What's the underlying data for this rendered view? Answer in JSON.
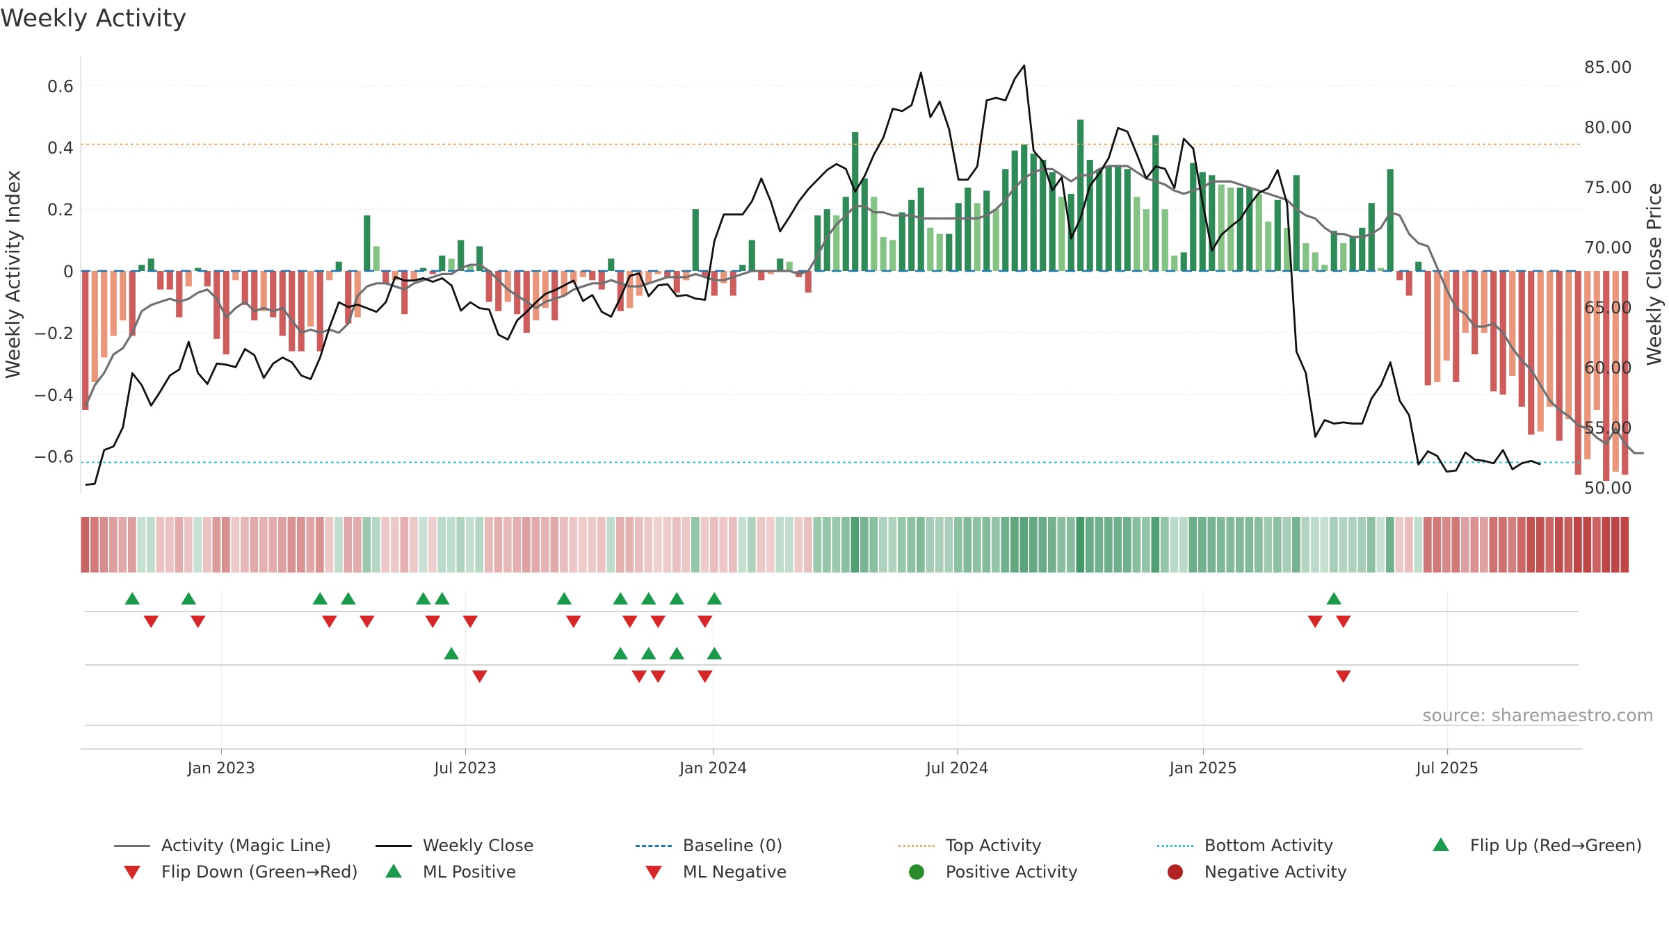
{
  "chart_data": {
    "type": "bar",
    "title": "Weekly Activity",
    "ylabel_left": "Weekly Activity Index",
    "ylabel_right": "Weekly Close Price",
    "source": "source: sharemaestro.com",
    "y_left_range": [
      -0.72,
      0.72
    ],
    "y_left_ticks": [
      0.6,
      0.4,
      0.2,
      0,
      -0.2,
      -0.4,
      -0.6
    ],
    "y_left_tick_labels": [
      "0.6",
      "0.4",
      "0.2",
      "0",
      "−0.2",
      "−0.4",
      "−0.6"
    ],
    "y_right_range": [
      49.5,
      86.5
    ],
    "y_right_ticks": [
      85,
      80,
      75,
      70,
      65,
      60,
      55,
      50
    ],
    "y_right_tick_labels": [
      "85.00",
      "80.00",
      "75.00",
      "70.00",
      "65.00",
      "60.00",
      "55.00",
      "50.00"
    ],
    "x_ticks": [
      {
        "label": "Jan 2023",
        "week": 15
      },
      {
        "label": "Jul 2023",
        "week": 41
      },
      {
        "label": "Jan 2024",
        "week": 67.4
      },
      {
        "label": "Jul 2024",
        "week": 93.4
      },
      {
        "label": "Jan 2025",
        "week": 119.6
      },
      {
        "label": "Jul 2025",
        "week": 145.6
      }
    ],
    "top_activity": 0.41,
    "bottom_activity": -0.62,
    "baseline": 0,
    "activity": [
      -0.45,
      -0.36,
      -0.28,
      -0.21,
      -0.16,
      -0.21,
      0.02,
      0.04,
      -0.06,
      -0.06,
      -0.15,
      -0.05,
      0.01,
      -0.05,
      -0.22,
      -0.27,
      -0.03,
      -0.11,
      -0.16,
      -0.13,
      -0.15,
      -0.21,
      -0.26,
      -0.26,
      -0.18,
      -0.26,
      -0.03,
      0.03,
      -0.17,
      -0.15,
      0.18,
      0.08,
      -0.04,
      -0.03,
      -0.14,
      -0.03,
      0.01,
      -0.01,
      0.05,
      0.04,
      0.1,
      0.02,
      0.08,
      -0.1,
      -0.13,
      -0.1,
      -0.14,
      -0.2,
      -0.16,
      -0.12,
      -0.16,
      -0.08,
      -0.04,
      -0.02,
      -0.03,
      -0.06,
      0.04,
      -0.13,
      -0.12,
      -0.08,
      -0.04,
      -0.01,
      -0.02,
      -0.07,
      -0.03,
      0.2,
      -0.02,
      -0.08,
      -0.04,
      -0.08,
      0.02,
      0.1,
      -0.03,
      -0.01,
      0.04,
      0.03,
      -0.02,
      -0.07,
      0.18,
      0.2,
      0.18,
      0.24,
      0.45,
      0.3,
      0.24,
      0.11,
      0.1,
      0.19,
      0.23,
      0.27,
      0.14,
      0.12,
      0.12,
      0.22,
      0.27,
      0.22,
      0.26,
      0.2,
      0.33,
      0.39,
      0.41,
      0.38,
      0.36,
      0.32,
      0.24,
      0.25,
      0.49,
      0.36,
      0.33,
      0.34,
      0.34,
      0.33,
      0.24,
      0.2,
      0.44,
      0.2,
      0.05,
      0.06,
      0.35,
      0.32,
      0.31,
      0.28,
      0.27,
      0.27,
      0.27,
      0.25,
      0.16,
      0.23,
      0.14,
      0.31,
      0.09,
      0.06,
      0.02,
      0.13,
      0.09,
      0.11,
      0.14,
      0.22,
      0.01,
      0.33,
      -0.03,
      -0.08,
      0.03,
      -0.37,
      -0.36,
      -0.29,
      -0.36,
      -0.2,
      -0.27,
      -0.2,
      -0.39,
      -0.4,
      -0.34,
      -0.44,
      -0.53,
      -0.52,
      -0.44,
      -0.55,
      -0.48,
      -0.66,
      -0.61,
      -0.45,
      -0.68,
      -0.65,
      -0.66
    ],
    "magic_line": [
      -0.44,
      -0.37,
      -0.33,
      -0.27,
      -0.25,
      -0.2,
      -0.13,
      -0.11,
      -0.1,
      -0.09,
      -0.1,
      -0.09,
      -0.07,
      -0.06,
      -0.09,
      -0.15,
      -0.12,
      -0.1,
      -0.13,
      -0.12,
      -0.13,
      -0.12,
      -0.16,
      -0.2,
      -0.19,
      -0.2,
      -0.19,
      -0.2,
      -0.17,
      -0.08,
      -0.05,
      -0.04,
      -0.04,
      -0.05,
      -0.06,
      -0.04,
      -0.03,
      -0.02,
      -0.01,
      -0.01,
      0.01,
      0.02,
      0.02,
      0.0,
      -0.03,
      -0.06,
      -0.08,
      -0.1,
      -0.12,
      -0.1,
      -0.09,
      -0.08,
      -0.06,
      -0.05,
      -0.04,
      -0.04,
      -0.03,
      -0.04,
      -0.05,
      -0.05,
      -0.04,
      -0.03,
      -0.02,
      -0.02,
      -0.02,
      -0.01,
      -0.02,
      -0.03,
      -0.03,
      -0.02,
      -0.01,
      0.0,
      0.0,
      0.0,
      0.0,
      0.0,
      -0.01,
      0.0,
      0.05,
      0.11,
      0.15,
      0.18,
      0.21,
      0.21,
      0.19,
      0.19,
      0.18,
      0.18,
      0.18,
      0.17,
      0.17,
      0.17,
      0.17,
      0.17,
      0.17,
      0.17,
      0.18,
      0.2,
      0.23,
      0.27,
      0.3,
      0.32,
      0.33,
      0.33,
      0.31,
      0.29,
      0.31,
      0.31,
      0.33,
      0.34,
      0.34,
      0.34,
      0.32,
      0.3,
      0.29,
      0.28,
      0.26,
      0.25,
      0.26,
      0.27,
      0.29,
      0.29,
      0.29,
      0.28,
      0.27,
      0.26,
      0.25,
      0.24,
      0.23,
      0.2,
      0.18,
      0.17,
      0.14,
      0.12,
      0.12,
      0.11,
      0.11,
      0.12,
      0.14,
      0.19,
      0.18,
      0.12,
      0.09,
      0.08,
      0.01,
      -0.06,
      -0.12,
      -0.14,
      -0.18,
      -0.18,
      -0.17,
      -0.2,
      -0.25,
      -0.29,
      -0.32,
      -0.37,
      -0.42,
      -0.45,
      -0.47,
      -0.5,
      -0.51,
      -0.54,
      -0.56,
      -0.51,
      -0.56,
      -0.59,
      -0.59
    ],
    "weekly_close": [
      50.2,
      50.3,
      53.1,
      53.4,
      55.0,
      59.5,
      58.5,
      56.8,
      58.0,
      59.3,
      59.8,
      62.1,
      59.5,
      58.6,
      60.3,
      60.2,
      60.0,
      61.5,
      61.0,
      59.1,
      60.3,
      60.8,
      60.4,
      59.3,
      59.0,
      60.8,
      63.3,
      65.4,
      65.0,
      65.2,
      64.9,
      64.6,
      65.4,
      67.5,
      67.2,
      67.2,
      67.4,
      67.1,
      67.4,
      66.8,
      64.7,
      65.4,
      64.9,
      64.8,
      62.7,
      62.3,
      63.9,
      64.6,
      65.4,
      66.1,
      66.4,
      66.8,
      67.2,
      65.5,
      66.0,
      64.6,
      64.2,
      65.8,
      67.6,
      67.8,
      65.9,
      66.8,
      66.9,
      65.9,
      66.0,
      65.7,
      65.6,
      70.5,
      72.7,
      72.7,
      72.7,
      73.8,
      75.7,
      73.8,
      71.3,
      72.5,
      73.8,
      74.8,
      75.6,
      76.4,
      76.9,
      76.5,
      74.6,
      75.9,
      77.7,
      79.1,
      81.5,
      81.3,
      81.8,
      84.5,
      80.8,
      82.1,
      79.8,
      75.6,
      75.6,
      76.7,
      82.2,
      82.4,
      82.2,
      84.0,
      85.1,
      78.0,
      77.1,
      74.7,
      75.8,
      70.7,
      72.4,
      75.1,
      76.1,
      77.4,
      79.9,
      79.6,
      77.7,
      75.7,
      76.7,
      76.5,
      74.9,
      79.0,
      78.2,
      73.7,
      69.7,
      71.0,
      71.7,
      72.3,
      73.5,
      74.5,
      74.9,
      76.4,
      73.6,
      61.3,
      59.5,
      54.2,
      55.6,
      55.3,
      55.4,
      55.3,
      55.3,
      57.4,
      58.5,
      60.4,
      57.2,
      56.0,
      51.9,
      53.0,
      52.6,
      51.3,
      51.4,
      52.9,
      52.3,
      52.2,
      52.0,
      53.1,
      51.5,
      52.0,
      52.2,
      51.9
    ],
    "weeks": 160,
    "flip_up_weeks": [
      5,
      11,
      25,
      28,
      36,
      38,
      51,
      57,
      60,
      63,
      67,
      133
    ],
    "flip_down_weeks": [
      7,
      12,
      26,
      30,
      37,
      41,
      52,
      58,
      61,
      66,
      131,
      134
    ],
    "ml_positive_weeks": [
      39,
      57,
      60,
      63,
      67
    ],
    "ml_negative_weeks": [
      42,
      59,
      61,
      66,
      134
    ],
    "colors": {
      "pos_dark": "#2e8b57",
      "pos_light": "#84c384",
      "neg_dark": "#cd5c5c",
      "neg_light": "#e9967a",
      "magic_line": "#707070",
      "close": "#111111",
      "baseline": "#1f77b4",
      "top": "#e8a870",
      "bottom": "#36c0d0",
      "tri_up": "#1a9a4a",
      "tri_down": "#d62728",
      "dot_pos": "#2a8c2a",
      "dot_neg": "#b22222"
    },
    "legend": [
      {
        "label": "Activity (Magic Line)",
        "symbol": "line",
        "color": "#707070"
      },
      {
        "label": "Weekly Close",
        "symbol": "line",
        "color": "#111111"
      },
      {
        "label": "Baseline (0)",
        "symbol": "dash",
        "color": "#1f77b4"
      },
      {
        "label": "Top Activity",
        "symbol": "dot-line",
        "color": "#e8a870"
      },
      {
        "label": "Bottom Activity",
        "symbol": "dot-line",
        "color": "#36c0d0"
      },
      {
        "label": "Flip Up (Red→Green)",
        "symbol": "tri-up",
        "color": "#1a9a4a"
      },
      {
        "label": "Flip Down (Green→Red)",
        "symbol": "tri-down",
        "color": "#d62728"
      },
      {
        "label": "ML Positive",
        "symbol": "tri-up",
        "color": "#1a9a4a"
      },
      {
        "label": "ML Negative",
        "symbol": "tri-down",
        "color": "#d62728"
      },
      {
        "label": "Positive Activity",
        "symbol": "dot",
        "color": "#2a8c2a"
      },
      {
        "label": "Negative Activity",
        "symbol": "dot",
        "color": "#b22222"
      }
    ]
  }
}
